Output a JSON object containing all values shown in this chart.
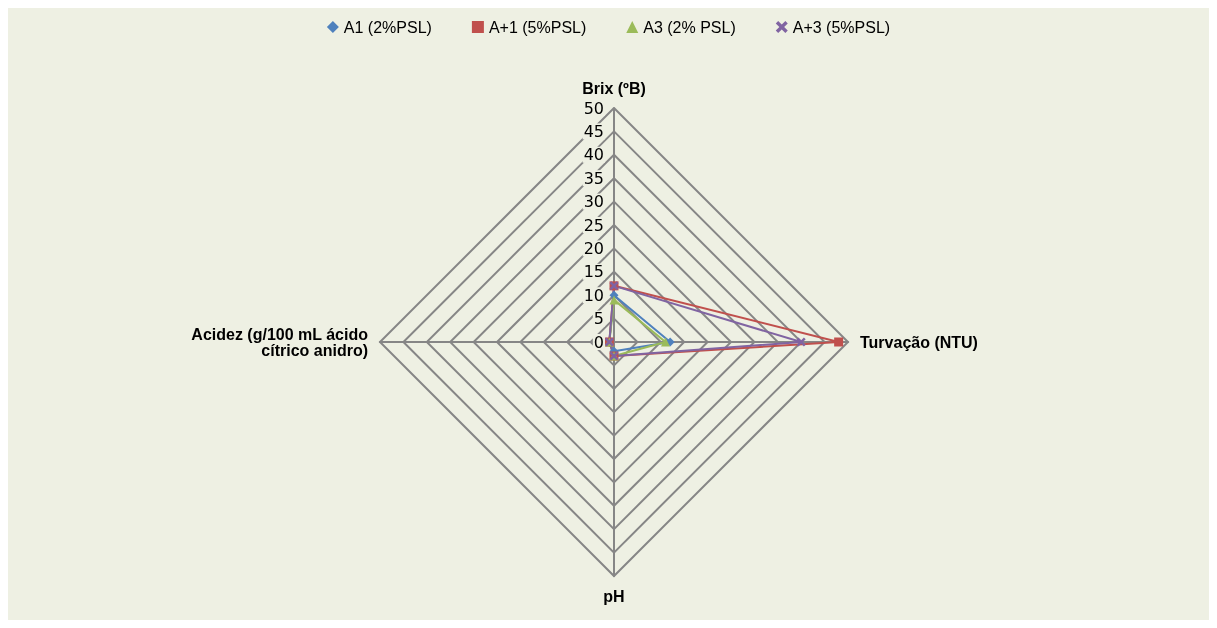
{
  "chart_data": {
    "type": "radar",
    "categories": [
      "Brix (ºB)",
      "Turvação (NTU)",
      "pH",
      "Acidez (g/100 mL ácido cítrico anidro)"
    ],
    "ylim": [
      0,
      50
    ],
    "yticks": [
      0,
      5,
      10,
      15,
      20,
      25,
      30,
      35,
      40,
      45,
      50
    ],
    "legend": "top",
    "grid": true,
    "series": [
      {
        "name": "A1 (2%PSL)",
        "color": "#4f81bd",
        "marker": "diamond",
        "values": [
          10,
          12,
          2,
          1
        ]
      },
      {
        "name": "A+1 (5%PSL)",
        "color": "#c0504d",
        "marker": "square",
        "values": [
          12,
          48,
          3,
          1
        ]
      },
      {
        "name": "A3 (2% PSL)",
        "color": "#9bbb59",
        "marker": "triangle",
        "values": [
          9,
          11,
          3,
          1
        ]
      },
      {
        "name": "A+3 (5%PSL)",
        "color": "#8064a2",
        "marker": "cross",
        "values": [
          12,
          40,
          3,
          1
        ]
      }
    ]
  }
}
